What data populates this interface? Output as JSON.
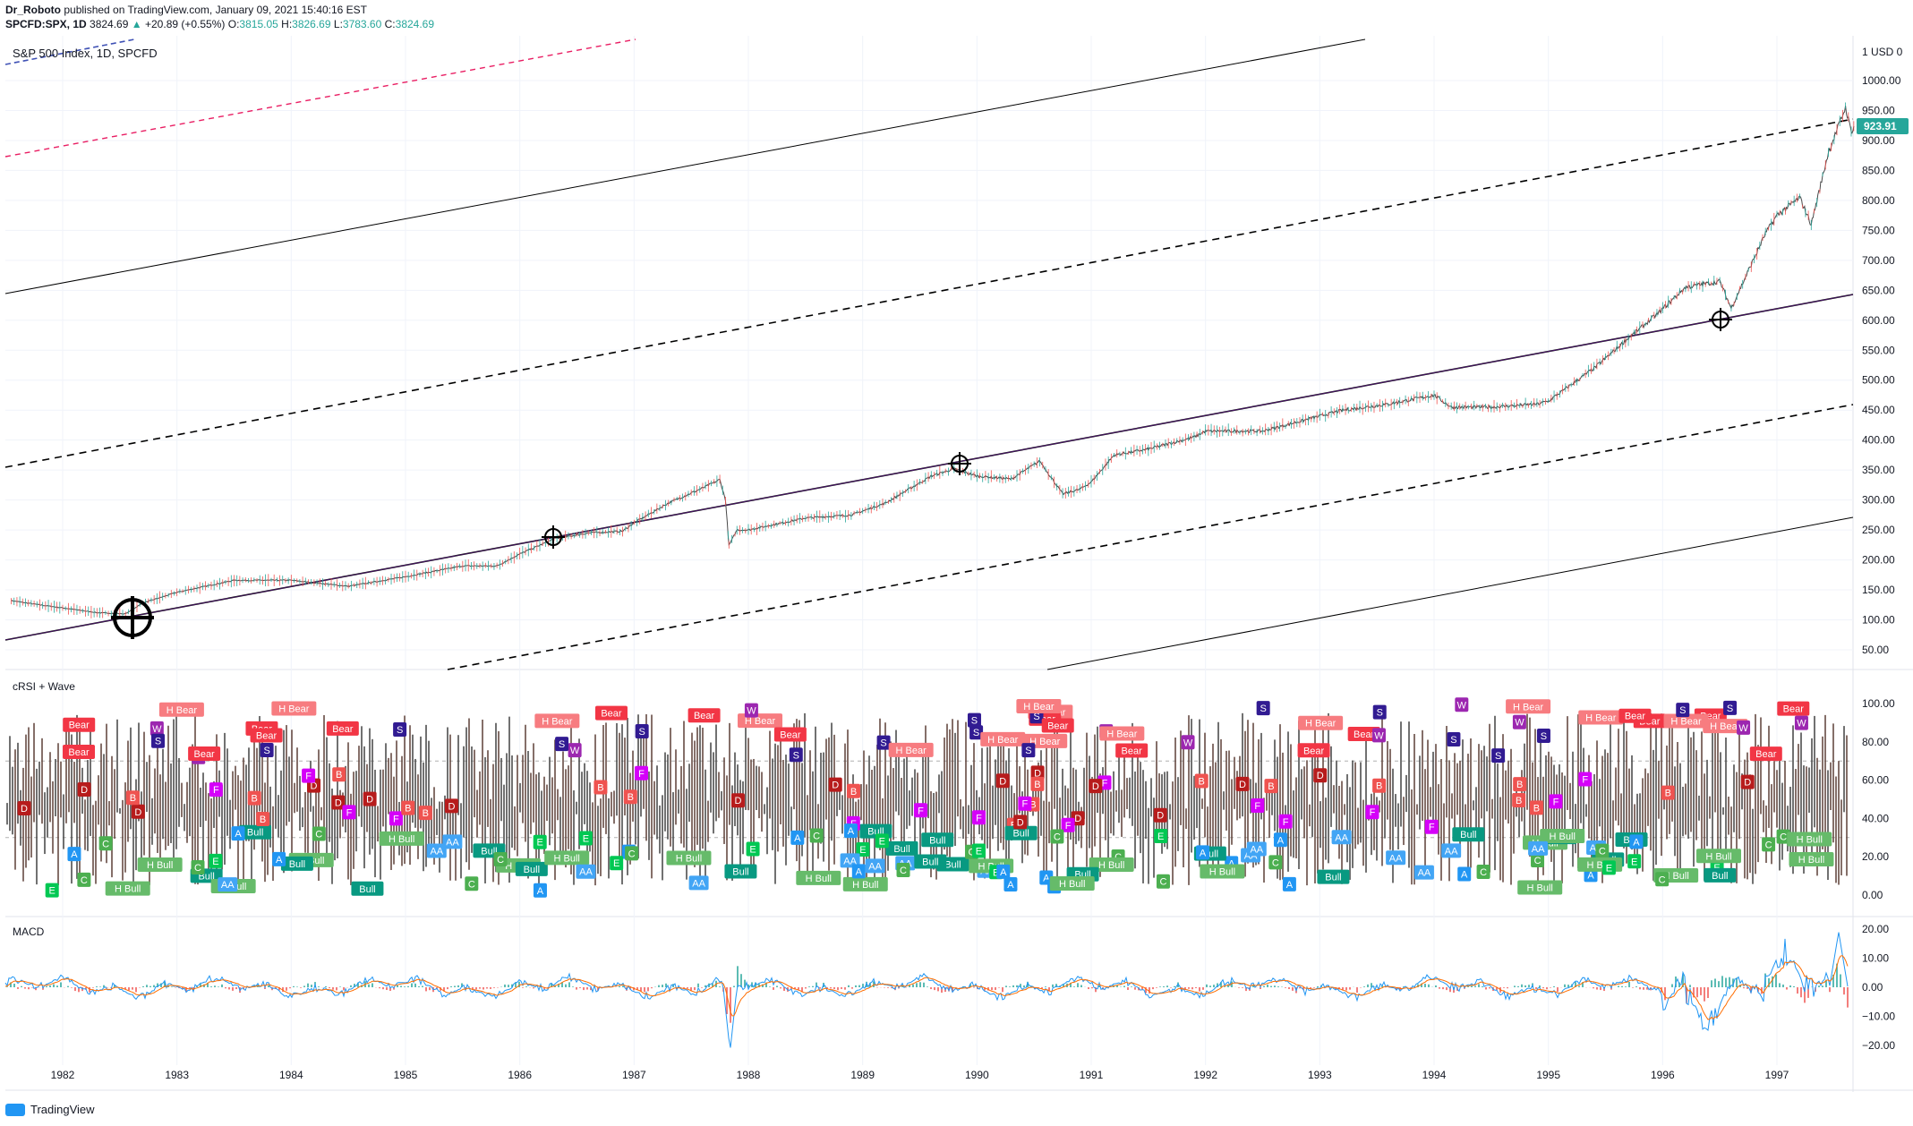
{
  "header": {
    "publisher": "Dr_Roboto",
    "published_text": "published on TradingView.com, January 09, 2021 15:40:16 EST",
    "symbol": "SPCFD:SPX, 1D",
    "last": "3824.69",
    "change": "+20.89 (+0.55%)",
    "o_label": "O:",
    "o_value": "3815.05",
    "h_label": "H:",
    "h_value": "3826.69",
    "l_label": "L:",
    "l_value": "3783.60",
    "c_label": "C:",
    "c_value": "3824.69"
  },
  "footer": {
    "brand": "TradingView"
  },
  "chart_data": [
    {
      "type": "line",
      "title": "S&P 500 Index, 1D, SPCFD",
      "y_unit_badge": "USD",
      "last_price_label": "923.91",
      "ylim": [
        25,
        1050
      ],
      "yticks": [
        "1000.00",
        "950.00",
        "900.00",
        "850.00",
        "800.00",
        "750.00",
        "700.00",
        "650.00",
        "600.00",
        "550.00",
        "500.00",
        "450.00",
        "400.00",
        "350.00",
        "300.00",
        "250.00",
        "200.00",
        "150.00",
        "100.00",
        "50.00"
      ],
      "x": [
        "1982",
        "1983",
        "1984",
        "1985",
        "1986",
        "1987",
        "1988",
        "1989",
        "1990",
        "1991",
        "1992",
        "1993",
        "1994",
        "1995",
        "1996",
        "1997"
      ],
      "series": [
        {
          "values": [
            [
              1981.55,
              132
            ],
            [
              1981.8,
              125
            ],
            [
              1982.0,
              120
            ],
            [
              1982.3,
              112
            ],
            [
              1982.55,
              110
            ],
            [
              1982.7,
              128
            ],
            [
              1983.0,
              146
            ],
            [
              1983.5,
              166
            ],
            [
              1984.0,
              166
            ],
            [
              1984.5,
              156
            ],
            [
              1985.0,
              172
            ],
            [
              1985.5,
              190
            ],
            [
              1985.8,
              190
            ],
            [
              1986.0,
              210
            ],
            [
              1986.3,
              235
            ],
            [
              1986.6,
              245
            ],
            [
              1986.9,
              248
            ],
            [
              1987.0,
              262
            ],
            [
              1987.3,
              295
            ],
            [
              1987.6,
              320
            ],
            [
              1987.75,
              334
            ],
            [
              1987.8,
              300
            ],
            [
              1987.83,
              224
            ],
            [
              1987.9,
              250
            ],
            [
              1988.0,
              250
            ],
            [
              1988.5,
              270
            ],
            [
              1988.9,
              275
            ],
            [
              1989.2,
              295
            ],
            [
              1989.6,
              340
            ],
            [
              1989.8,
              352
            ],
            [
              1990.0,
              340
            ],
            [
              1990.3,
              335
            ],
            [
              1990.55,
              365
            ],
            [
              1990.75,
              310
            ],
            [
              1990.9,
              318
            ],
            [
              1991.0,
              330
            ],
            [
              1991.2,
              375
            ],
            [
              1991.5,
              385
            ],
            [
              1991.9,
              405
            ],
            [
              1992.0,
              415
            ],
            [
              1992.5,
              415
            ],
            [
              1992.9,
              435
            ],
            [
              1993.2,
              450
            ],
            [
              1993.6,
              460
            ],
            [
              1994.0,
              475
            ],
            [
              1994.15,
              455
            ],
            [
              1994.5,
              455
            ],
            [
              1994.9,
              460
            ],
            [
              1995.0,
              465
            ],
            [
              1995.4,
              520
            ],
            [
              1995.7,
              570
            ],
            [
              1995.95,
              610
            ],
            [
              1996.2,
              655
            ],
            [
              1996.5,
              665
            ],
            [
              1996.6,
              620
            ],
            [
              1996.9,
              745
            ],
            [
              1997.0,
              775
            ],
            [
              1997.2,
              805
            ],
            [
              1997.3,
              760
            ],
            [
              1997.45,
              880
            ],
            [
              1997.6,
              955
            ],
            [
              1997.65,
              915
            ],
            [
              1997.68,
              924
            ]
          ]
        }
      ]
    },
    {
      "type": "line",
      "title": "cRSI + Wave",
      "ylim": [
        0,
        100
      ],
      "yticks": [
        "100.00",
        "80.00",
        "60.00",
        "40.00",
        "20.00",
        "0.00"
      ],
      "signal_labels": [
        "Bear",
        "H Bear",
        "Bull",
        "H Bull",
        "A",
        "B",
        "C",
        "D",
        "E",
        "F",
        "S",
        "W",
        "AA"
      ]
    },
    {
      "type": "line",
      "title": "MACD",
      "ylim": [
        -25,
        25
      ],
      "yticks": [
        "20.00",
        "10.00",
        "0.00",
        "−10.00",
        "−20.00"
      ],
      "extremes": {
        "min": -22,
        "max": 19
      }
    }
  ]
}
